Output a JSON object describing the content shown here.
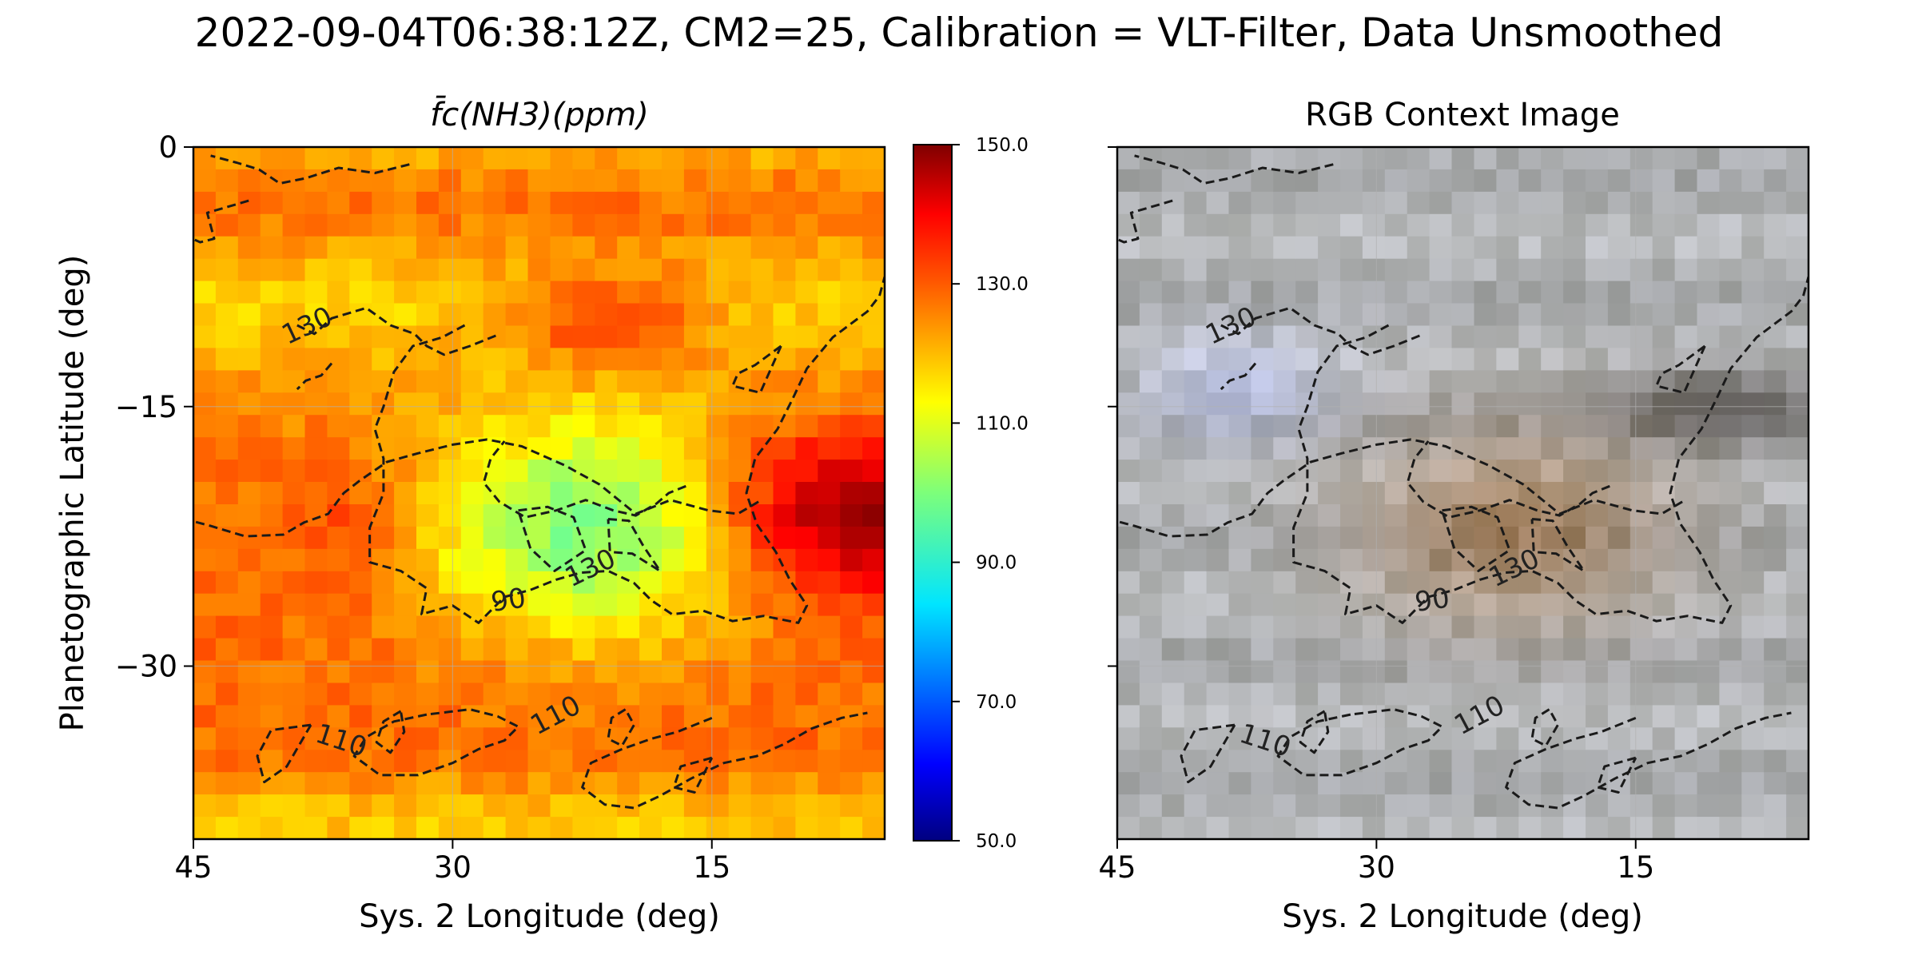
{
  "figure_title": "2022-09-04T06:38:12Z, CM2=25, Calibration = VLT-Filter, Data Unsmoothed",
  "chart_data": [
    {
      "type": "heatmap",
      "title": "f̄c(NH3)(ppm)",
      "xlabel": "Sys. 2 Longitude (deg)",
      "ylabel": "Planetographic Latitude (deg)",
      "xlim": [
        45,
        5
      ],
      "ylim": [
        -40,
        0
      ],
      "x_ticks": [
        "45",
        "30",
        "15"
      ],
      "y_ticks": [
        "0",
        "−15",
        "−30"
      ],
      "grid": true,
      "colormap": "jet",
      "colorbar": {
        "vmin": 50,
        "vmax": 150,
        "ticks": [
          "150.0",
          "130.0",
          "110.0",
          "90.0",
          "70.0",
          "50.0"
        ]
      },
      "contour_levels": [
        90,
        110,
        130
      ],
      "contour_labels": [
        "130",
        "90",
        "130",
        "110",
        "110"
      ]
    },
    {
      "type": "heatmap",
      "title": "RGB Context Image",
      "xlabel": "Sys. 2 Longitude (deg)",
      "xlim": [
        45,
        5
      ],
      "ylim": [
        -40,
        0
      ],
      "x_ticks": [
        "45",
        "30",
        "15"
      ],
      "grid": true,
      "contour_levels": [
        90,
        110,
        130
      ],
      "contour_labels": [
        "130",
        "90",
        "130",
        "110",
        "110"
      ]
    }
  ]
}
